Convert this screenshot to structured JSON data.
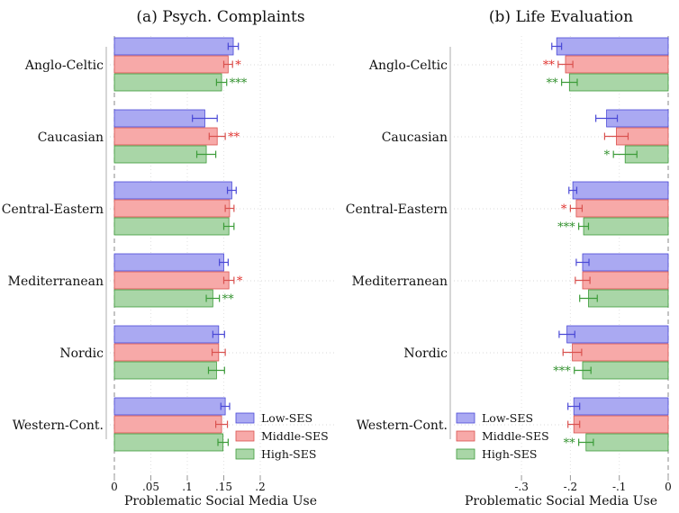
{
  "chart_data": [
    {
      "type": "bar",
      "orientation": "horizontal",
      "title": "(a) Psych. Complaints",
      "xlabel": "Problematic Social Media Use",
      "xlim": [
        0,
        0.2
      ],
      "xticks": [
        "0",
        ".05",
        ".1",
        ".15",
        ".2"
      ],
      "categories": [
        "Anglo-Celtic",
        "Caucasian",
        "Central-Eastern",
        "Mediterranean",
        "Nordic",
        "Western-Cont."
      ],
      "series": [
        {
          "name": "Low-SES",
          "values": [
            0.163,
            0.124,
            0.161,
            0.15,
            0.143,
            0.152
          ],
          "ci_low": [
            0.156,
            0.107,
            0.155,
            0.144,
            0.135,
            0.146
          ],
          "ci_high": [
            0.17,
            0.141,
            0.167,
            0.156,
            0.151,
            0.158
          ],
          "stars": [
            "",
            "",
            "",
            "",
            "",
            ""
          ]
        },
        {
          "name": "Middle-SES",
          "values": [
            0.156,
            0.141,
            0.158,
            0.157,
            0.143,
            0.147
          ],
          "ci_low": [
            0.15,
            0.13,
            0.152,
            0.15,
            0.134,
            0.139
          ],
          "ci_high": [
            0.162,
            0.152,
            0.164,
            0.164,
            0.152,
            0.155
          ],
          "stars": [
            "*",
            "**",
            "",
            "*",
            "",
            ""
          ]
        },
        {
          "name": "High-SES",
          "values": [
            0.147,
            0.126,
            0.157,
            0.135,
            0.14,
            0.149
          ],
          "ci_low": [
            0.14,
            0.113,
            0.15,
            0.126,
            0.129,
            0.142
          ],
          "ci_high": [
            0.154,
            0.139,
            0.164,
            0.144,
            0.151,
            0.156
          ],
          "stars": [
            "***",
            "",
            "",
            "**",
            "",
            ""
          ]
        }
      ]
    },
    {
      "type": "bar",
      "orientation": "horizontal",
      "title": "(b) Life Evaluation",
      "xlabel": "Problematic Social Media Use",
      "xlim": [
        -0.3,
        0
      ],
      "xticks": [
        "-.3",
        "-.2",
        "-.1",
        "0"
      ],
      "categories": [
        "Anglo-Celtic",
        "Caucasian",
        "Central-Eastern",
        "Mediterranean",
        "Nordic",
        "Western-Cont."
      ],
      "series": [
        {
          "name": "Low-SES",
          "values": [
            -0.228,
            -0.126,
            -0.195,
            -0.175,
            -0.207,
            -0.193
          ],
          "ci_low": [
            -0.238,
            -0.148,
            -0.203,
            -0.188,
            -0.223,
            -0.205
          ],
          "ci_high": [
            -0.218,
            -0.104,
            -0.187,
            -0.162,
            -0.191,
            -0.181
          ]
        },
        {
          "name": "Middle-SES",
          "values": [
            -0.21,
            -0.106,
            -0.188,
            -0.175,
            -0.196,
            -0.193
          ],
          "ci_low": [
            -0.225,
            -0.13,
            -0.2,
            -0.19,
            -0.215,
            -0.205
          ],
          "ci_high": [
            -0.195,
            -0.082,
            -0.176,
            -0.16,
            -0.177,
            -0.181
          ]
        },
        {
          "name": "High-SES",
          "values": [
            -0.202,
            -0.088,
            -0.173,
            -0.163,
            -0.175,
            -0.168
          ],
          "ci_low": [
            -0.218,
            -0.112,
            -0.183,
            -0.181,
            -0.192,
            -0.183
          ],
          "ci_high": [
            -0.186,
            -0.064,
            -0.163,
            -0.145,
            -0.158,
            -0.153
          ]
        }
      ],
      "stars_by_series": [
        [
          "",
          "",
          "",
          "",
          "",
          ""
        ],
        [
          "**",
          "",
          "*",
          "",
          "",
          ""
        ],
        [
          "**",
          "*",
          "***",
          "",
          "***",
          "**"
        ]
      ]
    }
  ],
  "legend": [
    "Low-SES",
    "Middle-SES",
    "High-SES"
  ],
  "colors": {
    "low_fill": "#aaa9f2",
    "low_stroke": "#4a49d6",
    "mid_fill": "#f7a9a8",
    "mid_stroke": "#d9524f",
    "high_fill": "#a9d6a7",
    "high_stroke": "#3d9c3a",
    "low_text": "#2d2bd0",
    "mid_text": "#e0312d",
    "high_text": "#2f8f2b"
  }
}
